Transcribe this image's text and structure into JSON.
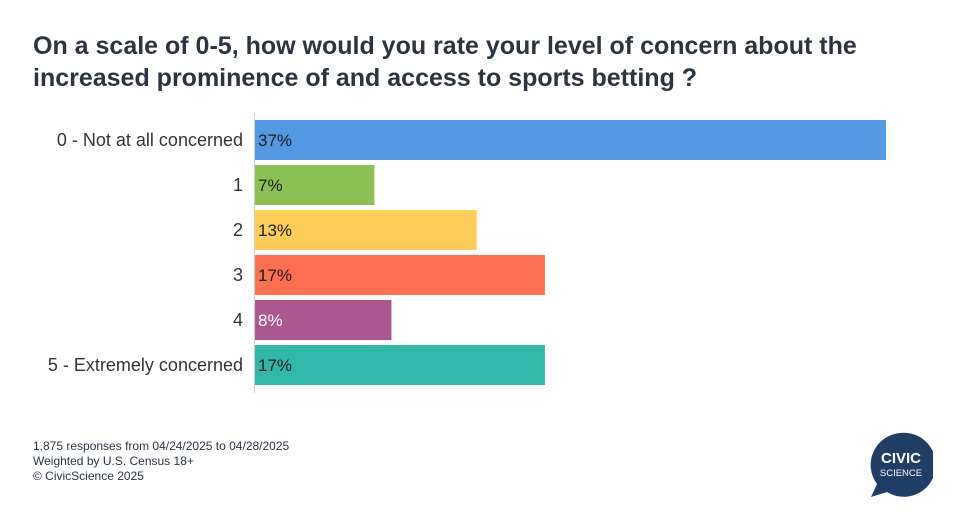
{
  "title": "On a scale of 0-5, how would you rate your level of concern about the increased prominence of and access to sports betting ?",
  "chart_data": {
    "type": "bar",
    "orientation": "horizontal",
    "categories": [
      "0 - Not at all concerned",
      "1",
      "2",
      "3",
      "4",
      "5 - Extremely concerned"
    ],
    "values": [
      37,
      7,
      13,
      17,
      8,
      17
    ],
    "value_labels": [
      "37%",
      "7%",
      "13%",
      "17%",
      "8%",
      "17%"
    ],
    "colors": [
      "#5499e3",
      "#8bc152",
      "#fdcd57",
      "#fd6f52",
      "#ac5790",
      "#31b8a9"
    ],
    "label_colors": [
      "#1a1a1a",
      "#1a1a1a",
      "#1a1a1a",
      "#1a1a1a",
      "#ffffff",
      "#1a1a1a"
    ],
    "xlim": [
      0,
      37
    ],
    "grid": false,
    "legend": "none"
  },
  "footer": {
    "line1": "1,875 responses from 04/24/2025 to 04/28/2025",
    "line2": "Weighted by U.S. Census 18+",
    "line3": "© CivicScience 2025"
  },
  "logo": {
    "line1": "CIVIC",
    "line2": "SCIENCE",
    "color": "#1e3e66"
  }
}
